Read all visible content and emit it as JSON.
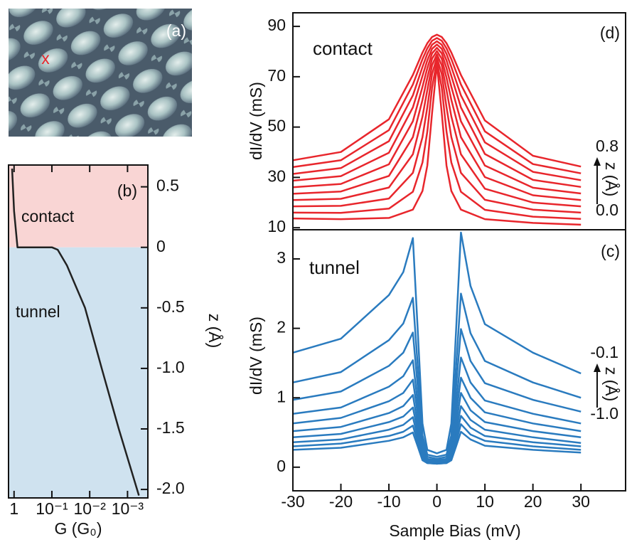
{
  "image_panel": {
    "label": "(a)",
    "marker": "x"
  },
  "chart_data": [
    {
      "type": "line",
      "label": "(b)",
      "xscale": "log",
      "y_axis_side": "right",
      "color": "#222222",
      "xlabel": "G (G₀)",
      "ylabel": "z (Å)",
      "xlim": [
        1.4,
        0.00029
      ],
      "ylim": [
        -2.07,
        0.68
      ],
      "xticks": [
        1,
        {
          "value": 0.1,
          "label": "10⁻¹"
        },
        {
          "value": 0.01,
          "label": "10⁻²"
        },
        {
          "value": 0.001,
          "label": "10⁻³"
        }
      ],
      "yticks": [
        0.5,
        0,
        -0.5,
        {
          "value": -1,
          "label": "-1.0"
        },
        -1.5,
        {
          "value": -2,
          "label": "-2.0"
        }
      ],
      "regions": [
        {
          "name": "contact",
          "color": "#f9d5d4",
          "above": 0
        },
        {
          "name": "tunnel",
          "color": "#cfe2ef",
          "below": 0
        }
      ],
      "x": [
        1.13,
        1.0,
        0.81,
        0.3,
        0.1,
        0.07,
        0.04,
        0.0133,
        0.0048,
        0.0017,
        0.0005
      ],
      "values": [
        0.65,
        0.3,
        0,
        0,
        0,
        -0.02,
        -0.15,
        -0.5,
        -1.0,
        -1.5,
        -2.05
      ]
    },
    {
      "type": "line",
      "label": "(d)",
      "annotation": "contact",
      "color": "#e8262c",
      "ylabel": "dI/dV (mS)",
      "xlim": [
        -30,
        39.3
      ],
      "ylim": [
        9.2,
        95.4
      ],
      "yticks": [
        10,
        30,
        50,
        70,
        90
      ],
      "z_annotation": {
        "top": "0.8",
        "label": "z (Å)",
        "bottom": "0.0"
      },
      "x": [
        -30,
        -20,
        -10,
        -5,
        -3,
        -2,
        -1,
        0,
        1,
        2,
        3,
        5,
        10,
        20,
        30
      ],
      "series": [
        {
          "values": [
            13.7,
            13.4,
            13.9,
            17.2,
            24.6,
            34.7,
            55.6,
            75,
            55.6,
            34.7,
            24.6,
            17.2,
            13.4,
            11.9,
            11.2
          ]
        },
        {
          "values": [
            16.0,
            15.9,
            17.6,
            24.3,
            35.9,
            48.2,
            65.7,
            76.3,
            65.7,
            48.2,
            35.9,
            24.3,
            17.1,
            14.4,
            13.5
          ]
        },
        {
          "values": [
            18.5,
            18.7,
            21.6,
            31.8,
            46.0,
            57.9,
            71.1,
            77.6,
            71.1,
            57.9,
            46.0,
            31.8,
            21.1,
            17.2,
            16.0
          ]
        },
        {
          "values": [
            21.0,
            21.5,
            26.0,
            39.2,
            54.2,
            64.7,
            74.6,
            78.9,
            74.6,
            64.7,
            54.2,
            39.2,
            25.5,
            20.0,
            18.5
          ]
        },
        {
          "values": [
            23.5,
            24.4,
            30.6,
            46.0,
            60.8,
            69.6,
            77.2,
            80.2,
            77.2,
            69.6,
            60.8,
            46.0,
            30.1,
            22.9,
            21.0
          ]
        },
        {
          "values": [
            26.1,
            27.4,
            35.2,
            52.3,
            66.0,
            73.4,
            79.3,
            81.5,
            79.3,
            73.4,
            66.0,
            52.3,
            34.7,
            25.9,
            23.6
          ]
        },
        {
          "values": [
            28.7,
            30.5,
            39.8,
            57.8,
            70.3,
            76.5,
            81.1,
            82.8,
            81.1,
            76.5,
            70.3,
            57.8,
            39.3,
            29.0,
            26.2
          ]
        },
        {
          "values": [
            31.4,
            33.7,
            44.4,
            62.6,
            73.9,
            79.1,
            82.7,
            84.1,
            82.7,
            79.1,
            73.9,
            62.6,
            43.9,
            32.2,
            28.9
          ]
        },
        {
          "values": [
            34.1,
            36.8,
            48.8,
            66.9,
            77.0,
            81.3,
            84.3,
            85.4,
            84.3,
            81.3,
            77.0,
            66.9,
            48.3,
            35.3,
            31.6
          ]
        },
        {
          "values": [
            36.8,
            40.1,
            53.1,
            70.7,
            79.6,
            83.3,
            85.8,
            86.7,
            85.8,
            83.3,
            79.6,
            70.7,
            52.6,
            38.6,
            34.3
          ]
        }
      ]
    },
    {
      "type": "line",
      "label": "(c)",
      "annotation": "tunnel",
      "color": "#2a7bbf",
      "xlabel": "Sample Bias (mV)",
      "ylabel": "dI/dV (mS)",
      "xlim": [
        -30,
        39.3
      ],
      "ylim": [
        -0.34,
        3.42
      ],
      "xticks": [
        -30,
        -20,
        -10,
        0,
        10,
        20,
        30
      ],
      "yticks": [
        0,
        1,
        2,
        3
      ],
      "z_annotation": {
        "top": "-0.1",
        "label": "z (Å)",
        "bottom": "-1.0"
      },
      "x": [
        -30,
        -20,
        -10,
        -7,
        -5,
        -4,
        -3,
        -2,
        0,
        2,
        3,
        4,
        5,
        7,
        10,
        20,
        30
      ],
      "series": [
        {
          "values": [
            0.25,
            0.28,
            0.38,
            0.43,
            0.5,
            0.3,
            0.1,
            0.06,
            0.05,
            0.06,
            0.1,
            0.3,
            0.51,
            0.4,
            0.31,
            0.25,
            0.21
          ]
        },
        {
          "values": [
            0.3,
            0.34,
            0.45,
            0.51,
            0.6,
            0.36,
            0.11,
            0.06,
            0.05,
            0.06,
            0.11,
            0.36,
            0.62,
            0.47,
            0.38,
            0.3,
            0.25
          ]
        },
        {
          "values": [
            0.36,
            0.4,
            0.54,
            0.61,
            0.72,
            0.43,
            0.14,
            0.07,
            0.06,
            0.07,
            0.14,
            0.43,
            0.74,
            0.57,
            0.45,
            0.36,
            0.3
          ]
        },
        {
          "values": [
            0.43,
            0.48,
            0.65,
            0.73,
            0.86,
            0.52,
            0.16,
            0.08,
            0.07,
            0.08,
            0.16,
            0.52,
            0.88,
            0.68,
            0.54,
            0.43,
            0.35
          ]
        },
        {
          "values": [
            0.52,
            0.58,
            0.78,
            0.88,
            1.04,
            0.62,
            0.2,
            0.09,
            0.08,
            0.09,
            0.2,
            0.62,
            1.07,
            0.82,
            0.65,
            0.52,
            0.43
          ]
        },
        {
          "values": [
            0.63,
            0.71,
            0.95,
            1.07,
            1.26,
            0.76,
            0.24,
            0.1,
            0.09,
            0.1,
            0.24,
            0.76,
            1.29,
            1.0,
            0.79,
            0.63,
            0.52
          ]
        },
        {
          "values": [
            0.77,
            0.86,
            1.16,
            1.31,
            1.54,
            0.92,
            0.29,
            0.12,
            0.1,
            0.12,
            0.29,
            0.92,
            1.58,
            1.22,
            0.96,
            0.77,
            0.63
          ]
        },
        {
          "values": [
            0.97,
            1.09,
            1.46,
            1.65,
            1.94,
            1.16,
            0.37,
            0.15,
            0.12,
            0.15,
            0.37,
            1.16,
            1.99,
            1.53,
            1.21,
            0.97,
            0.8
          ]
        },
        {
          "values": [
            1.22,
            1.37,
            1.83,
            2.07,
            2.44,
            1.46,
            0.46,
            0.18,
            0.15,
            0.18,
            0.46,
            1.46,
            2.5,
            1.93,
            1.53,
            1.22,
            1.0
          ]
        },
        {
          "values": [
            1.65,
            1.85,
            2.48,
            2.81,
            3.3,
            1.98,
            0.63,
            0.25,
            0.2,
            0.25,
            0.63,
            1.98,
            3.38,
            2.61,
            2.06,
            1.65,
            1.35
          ]
        }
      ]
    }
  ]
}
